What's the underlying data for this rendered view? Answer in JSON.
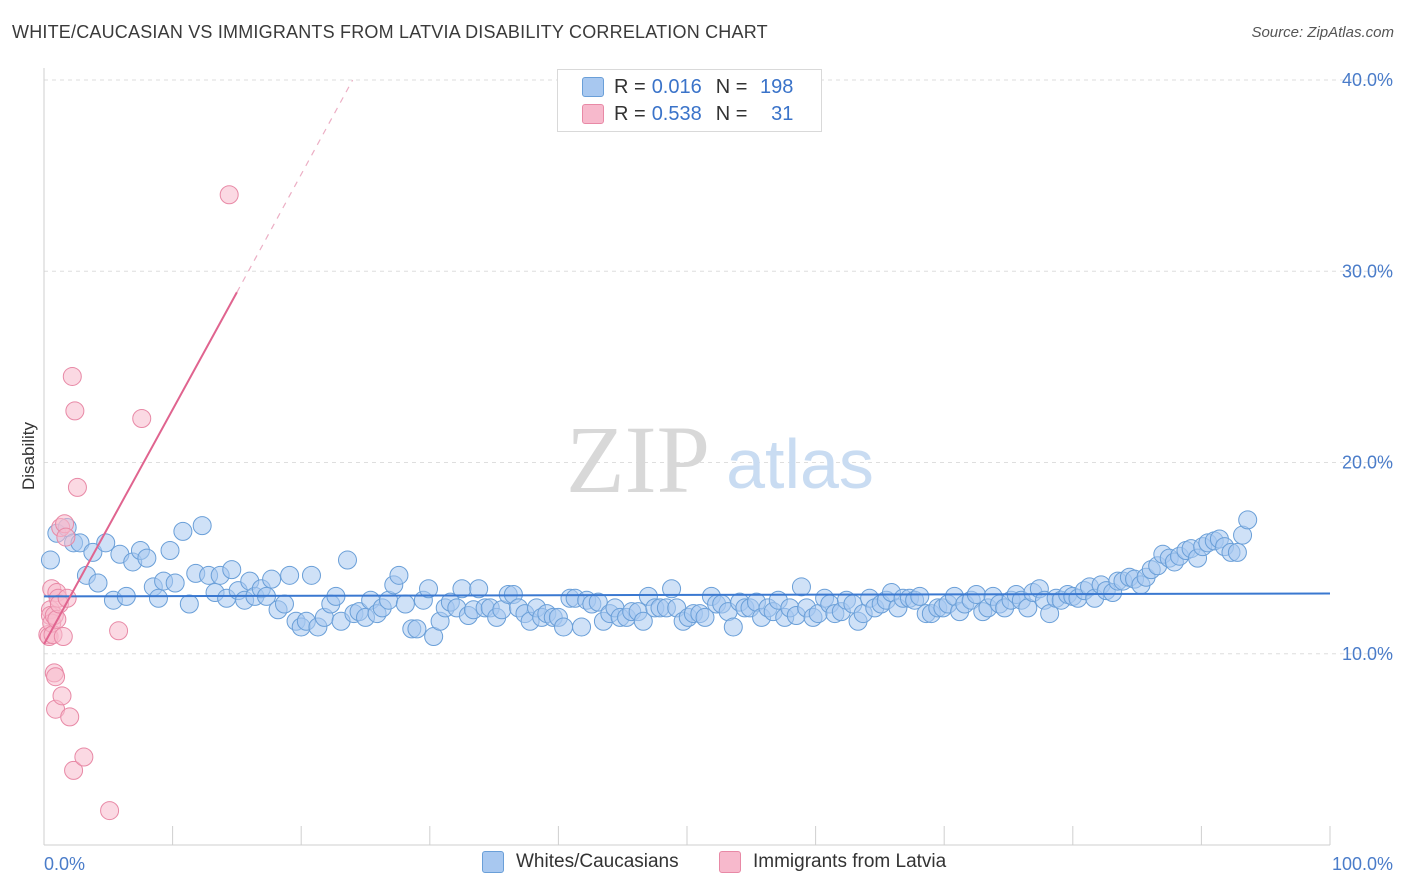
{
  "title": "WHITE/CAUCASIAN VS IMMIGRANTS FROM LATVIA DISABILITY CORRELATION CHART",
  "source": "Source: ZipAtlas.com",
  "watermark": {
    "zip": "ZIP",
    "atlas": "atlas"
  },
  "legend": {
    "rows": [
      {
        "r_label": "R =",
        "r_value": "0.016",
        "n_label": "N =",
        "n_value": "198",
        "color": "#a8c8f0",
        "border": "#6a9fd8"
      },
      {
        "r_label": "R =",
        "r_value": "0.538",
        "n_label": "N =",
        "n_value": "31",
        "color": "#f7b9cc",
        "border": "#e889a6"
      }
    ]
  },
  "bottom_legend": [
    {
      "label": "Whites/Caucasians",
      "color": "#a8c8f0",
      "border": "#6a9fd8"
    },
    {
      "label": "Immigrants from Latvia",
      "color": "#f7b9cc",
      "border": "#e889a6"
    }
  ],
  "chart_data": {
    "type": "scatter",
    "xlabel": "",
    "ylabel": "Disability",
    "xlim": [
      0,
      100
    ],
    "ylim": [
      0,
      40
    ],
    "x_tick_labels": [
      "0.0%",
      "100.0%"
    ],
    "y_ticks": [
      10,
      20,
      30,
      40
    ],
    "y_tick_labels": [
      "10.0%",
      "20.0%",
      "30.0%",
      "40.0%"
    ],
    "grid": true,
    "series": [
      {
        "name": "Whites/Caucasians",
        "color": "#a8c8f0",
        "stroke": "#6a9fd8",
        "trend": {
          "x": [
            0,
            100
          ],
          "y": [
            13.0,
            13.15
          ],
          "color": "#3a78d0"
        },
        "points": [
          [
            0.5,
            14.9
          ],
          [
            1.0,
            16.3
          ],
          [
            1.8,
            16.6
          ],
          [
            2.3,
            15.8
          ],
          [
            2.8,
            15.8
          ],
          [
            3.3,
            14.1
          ],
          [
            3.8,
            15.3
          ],
          [
            4.2,
            13.7
          ],
          [
            4.8,
            15.8
          ],
          [
            5.4,
            12.8
          ],
          [
            5.9,
            15.2
          ],
          [
            6.4,
            13.0
          ],
          [
            6.9,
            14.8
          ],
          [
            7.5,
            15.4
          ],
          [
            8.0,
            15.0
          ],
          [
            8.5,
            13.5
          ],
          [
            8.9,
            12.9
          ],
          [
            9.3,
            13.8
          ],
          [
            9.8,
            15.4
          ],
          [
            10.2,
            13.7
          ],
          [
            10.8,
            16.4
          ],
          [
            11.3,
            12.6
          ],
          [
            11.8,
            14.2
          ],
          [
            12.3,
            16.7
          ],
          [
            12.8,
            14.1
          ],
          [
            13.3,
            13.2
          ],
          [
            13.7,
            14.1
          ],
          [
            14.2,
            12.9
          ],
          [
            14.6,
            14.4
          ],
          [
            15.1,
            13.3
          ],
          [
            15.6,
            12.8
          ],
          [
            16.0,
            13.8
          ],
          [
            16.4,
            13.0
          ],
          [
            16.9,
            13.4
          ],
          [
            17.3,
            13.0
          ],
          [
            17.7,
            13.9
          ],
          [
            18.2,
            12.3
          ],
          [
            18.7,
            12.6
          ],
          [
            19.1,
            14.1
          ],
          [
            19.6,
            11.7
          ],
          [
            20.0,
            11.4
          ],
          [
            20.4,
            11.7
          ],
          [
            20.8,
            14.1
          ],
          [
            21.3,
            11.4
          ],
          [
            21.8,
            11.9
          ],
          [
            22.3,
            12.6
          ],
          [
            22.7,
            13.0
          ],
          [
            23.1,
            11.7
          ],
          [
            23.6,
            14.9
          ],
          [
            24.1,
            12.1
          ],
          [
            24.5,
            12.2
          ],
          [
            25.0,
            11.9
          ],
          [
            25.4,
            12.8
          ],
          [
            25.9,
            12.1
          ],
          [
            26.3,
            12.4
          ],
          [
            26.8,
            12.8
          ],
          [
            27.2,
            13.6
          ],
          [
            27.6,
            14.1
          ],
          [
            28.1,
            12.6
          ],
          [
            28.6,
            11.3
          ],
          [
            29.0,
            11.3
          ],
          [
            29.5,
            12.8
          ],
          [
            29.9,
            13.4
          ],
          [
            30.3,
            10.9
          ],
          [
            30.8,
            11.7
          ],
          [
            31.2,
            12.4
          ],
          [
            31.6,
            12.7
          ],
          [
            32.1,
            12.4
          ],
          [
            32.5,
            13.4
          ],
          [
            33.0,
            12.0
          ],
          [
            33.4,
            12.3
          ],
          [
            33.8,
            13.4
          ],
          [
            34.3,
            12.4
          ],
          [
            34.7,
            12.4
          ],
          [
            35.2,
            11.9
          ],
          [
            35.6,
            12.3
          ],
          [
            36.1,
            13.1
          ],
          [
            36.5,
            13.1
          ],
          [
            36.9,
            12.4
          ],
          [
            37.4,
            12.1
          ],
          [
            37.8,
            11.7
          ],
          [
            38.3,
            12.4
          ],
          [
            38.7,
            11.9
          ],
          [
            39.1,
            12.1
          ],
          [
            39.6,
            11.9
          ],
          [
            40.0,
            11.9
          ],
          [
            40.4,
            11.4
          ],
          [
            40.9,
            12.9
          ],
          [
            41.3,
            12.9
          ],
          [
            41.8,
            11.4
          ],
          [
            42.2,
            12.8
          ],
          [
            42.6,
            12.6
          ],
          [
            43.1,
            12.7
          ],
          [
            43.5,
            11.7
          ],
          [
            44.0,
            12.1
          ],
          [
            44.4,
            12.4
          ],
          [
            44.8,
            11.9
          ],
          [
            45.3,
            11.9
          ],
          [
            45.7,
            12.2
          ],
          [
            46.2,
            12.2
          ],
          [
            46.6,
            11.7
          ],
          [
            47.0,
            13.0
          ],
          [
            47.5,
            12.4
          ],
          [
            47.9,
            12.4
          ],
          [
            48.4,
            12.4
          ],
          [
            48.8,
            13.4
          ],
          [
            49.2,
            12.4
          ],
          [
            49.7,
            11.7
          ],
          [
            50.1,
            11.9
          ],
          [
            50.5,
            12.1
          ],
          [
            51.0,
            12.1
          ],
          [
            51.4,
            11.9
          ],
          [
            51.9,
            13.0
          ],
          [
            52.3,
            12.6
          ],
          [
            52.7,
            12.6
          ],
          [
            53.2,
            12.2
          ],
          [
            53.6,
            11.4
          ],
          [
            54.1,
            12.7
          ],
          [
            54.5,
            12.4
          ],
          [
            54.9,
            12.4
          ],
          [
            55.4,
            12.7
          ],
          [
            55.8,
            11.9
          ],
          [
            56.3,
            12.4
          ],
          [
            56.7,
            12.2
          ],
          [
            57.1,
            12.8
          ],
          [
            57.6,
            11.9
          ],
          [
            58.0,
            12.4
          ],
          [
            58.5,
            12.0
          ],
          [
            58.9,
            13.5
          ],
          [
            59.3,
            12.4
          ],
          [
            59.8,
            11.9
          ],
          [
            60.2,
            12.1
          ],
          [
            60.7,
            12.9
          ],
          [
            61.1,
            12.6
          ],
          [
            61.5,
            12.1
          ],
          [
            62.0,
            12.2
          ],
          [
            62.4,
            12.8
          ],
          [
            62.9,
            12.6
          ],
          [
            63.3,
            11.7
          ],
          [
            63.7,
            12.1
          ],
          [
            64.2,
            12.9
          ],
          [
            64.6,
            12.4
          ],
          [
            65.1,
            12.6
          ],
          [
            65.5,
            12.8
          ],
          [
            65.9,
            13.2
          ],
          [
            66.4,
            12.4
          ],
          [
            66.8,
            12.9
          ],
          [
            67.3,
            12.9
          ],
          [
            67.7,
            12.8
          ],
          [
            68.1,
            13.0
          ],
          [
            68.6,
            12.1
          ],
          [
            69.0,
            12.1
          ],
          [
            69.5,
            12.4
          ],
          [
            69.9,
            12.4
          ],
          [
            70.3,
            12.6
          ],
          [
            70.8,
            13.0
          ],
          [
            71.2,
            12.2
          ],
          [
            71.6,
            12.6
          ],
          [
            72.1,
            12.8
          ],
          [
            72.5,
            13.1
          ],
          [
            73.0,
            12.2
          ],
          [
            73.4,
            12.4
          ],
          [
            73.8,
            13.0
          ],
          [
            74.3,
            12.6
          ],
          [
            74.7,
            12.4
          ],
          [
            75.2,
            12.8
          ],
          [
            75.6,
            13.1
          ],
          [
            76.0,
            12.8
          ],
          [
            76.5,
            12.4
          ],
          [
            76.9,
            13.2
          ],
          [
            77.4,
            13.4
          ],
          [
            77.8,
            12.8
          ],
          [
            78.2,
            12.1
          ],
          [
            78.7,
            12.9
          ],
          [
            79.1,
            12.8
          ],
          [
            79.6,
            13.1
          ],
          [
            80.0,
            13.0
          ],
          [
            80.4,
            12.9
          ],
          [
            80.9,
            13.3
          ],
          [
            81.3,
            13.5
          ],
          [
            81.7,
            12.9
          ],
          [
            82.2,
            13.6
          ],
          [
            82.6,
            13.3
          ],
          [
            83.1,
            13.2
          ],
          [
            83.5,
            13.8
          ],
          [
            83.9,
            13.8
          ],
          [
            84.4,
            14.0
          ],
          [
            84.8,
            13.9
          ],
          [
            85.3,
            13.6
          ],
          [
            85.7,
            14.0
          ],
          [
            86.1,
            14.4
          ],
          [
            86.6,
            14.6
          ],
          [
            87.0,
            15.2
          ],
          [
            87.5,
            15.0
          ],
          [
            87.9,
            14.8
          ],
          [
            88.3,
            15.1
          ],
          [
            88.8,
            15.4
          ],
          [
            89.2,
            15.5
          ],
          [
            89.7,
            15.0
          ],
          [
            90.1,
            15.6
          ],
          [
            90.5,
            15.8
          ],
          [
            91.0,
            15.9
          ],
          [
            91.4,
            16.0
          ],
          [
            91.8,
            15.6
          ],
          [
            92.3,
            15.3
          ],
          [
            92.8,
            15.3
          ],
          [
            93.2,
            16.2
          ],
          [
            93.6,
            17.0
          ]
        ]
      },
      {
        "name": "Immigrants from Latvia",
        "color": "#f7b9cc",
        "stroke": "#e889a6",
        "trend": {
          "x": [
            0,
            15
          ],
          "y": [
            10.5,
            28.9
          ],
          "dashed_to": {
            "x": 24,
            "y": 40
          },
          "color": "#e0648f"
        },
        "points": [
          [
            0.3,
            11.0
          ],
          [
            0.4,
            10.9
          ],
          [
            0.5,
            12.3
          ],
          [
            0.5,
            12.0
          ],
          [
            0.6,
            13.4
          ],
          [
            0.6,
            11.6
          ],
          [
            0.7,
            11.0
          ],
          [
            0.8,
            12.0
          ],
          [
            0.8,
            9.0
          ],
          [
            0.9,
            8.8
          ],
          [
            0.9,
            7.1
          ],
          [
            1.0,
            13.2
          ],
          [
            1.0,
            11.8
          ],
          [
            1.1,
            12.9
          ],
          [
            1.2,
            12.6
          ],
          [
            1.3,
            16.6
          ],
          [
            1.4,
            7.8
          ],
          [
            1.5,
            10.9
          ],
          [
            1.6,
            16.8
          ],
          [
            1.7,
            16.1
          ],
          [
            1.8,
            12.9
          ],
          [
            2.0,
            6.7
          ],
          [
            2.2,
            24.5
          ],
          [
            2.3,
            3.9
          ],
          [
            2.4,
            22.7
          ],
          [
            2.6,
            18.7
          ],
          [
            3.1,
            4.6
          ],
          [
            5.1,
            1.8
          ],
          [
            5.8,
            11.2
          ],
          [
            7.6,
            22.3
          ],
          [
            14.4,
            34.0
          ]
        ]
      }
    ]
  }
}
